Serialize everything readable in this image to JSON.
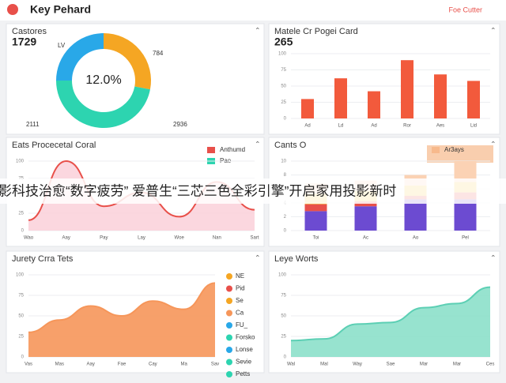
{
  "header": {
    "title": "Key Pehard",
    "link": "Foe Cutter"
  },
  "banner": "影科技治愈“数字疲劳” 爱普生“三芯三色全彩引擎”开启家用投影新时",
  "chart_data": [
    {
      "type": "donut",
      "title": "Castores",
      "kpi": "1729",
      "center_label": "12.0%",
      "values": [
        28,
        47,
        25
      ],
      "colors": [
        "#f5a623",
        "#2dd4b0",
        "#29a8e8"
      ],
      "annotations": [
        "LV",
        "784",
        "2111",
        "2936"
      ]
    },
    {
      "type": "bar",
      "title": "Matele Cr Pogei Card",
      "kpi": "265",
      "categories": [
        "Ad",
        "Ld",
        "Ad",
        "Ror",
        "Aes",
        "Lid"
      ],
      "values": [
        30,
        62,
        42,
        90,
        68,
        58
      ],
      "color": "#f25a3c",
      "ylim": [
        0,
        100
      ],
      "yticks": [
        0,
        25,
        50,
        75,
        100
      ]
    },
    {
      "type": "area",
      "title": "Eats Procecetal Coral",
      "categories": [
        "Wao",
        "Aay",
        "Pay",
        "Lay",
        "Woe",
        "Nan",
        "Sart"
      ],
      "values": [
        15,
        100,
        35,
        55,
        20,
        70,
        30
      ],
      "color": "#e8504a",
      "fill": "#fbd3dc",
      "ylim": [
        0,
        100
      ],
      "yticks": [
        0,
        25,
        50,
        75,
        100
      ],
      "legend": [
        {
          "name": "Anthumd",
          "color": "#e8504a"
        },
        {
          "name": "Pae",
          "color": "#2dd4b0"
        }
      ]
    },
    {
      "type": "stacked",
      "title": "Cants O",
      "categories": [
        "Toi",
        "Ac",
        "Ao",
        "Pel"
      ],
      "ylim": [
        0,
        10
      ],
      "yticks": [
        0,
        2,
        4,
        6,
        8,
        10
      ],
      "legend": [
        {
          "name": "Ar3ays",
          "color": "#f7b98c"
        }
      ],
      "series": [
        {
          "color": "#6c4bd1",
          "values": [
            2.8,
            3.5,
            4.5,
            4.5
          ]
        },
        {
          "color": "#e8504a",
          "values": [
            1,
            0.7,
            0.5,
            1
          ]
        },
        {
          "color": "#f7c948",
          "values": [
            1.5,
            1.5,
            1.5,
            1.5
          ]
        },
        {
          "color": "#fbd2b4",
          "values": [
            1.5,
            1.5,
            1.5,
            3
          ]
        }
      ]
    },
    {
      "type": "area",
      "title": "Jurety Crra Tets",
      "categories": [
        "Vas",
        "Mas",
        "Aay",
        "Fae",
        "Cay",
        "Ma",
        "Sav"
      ],
      "values": [
        30,
        45,
        62,
        50,
        68,
        58,
        90
      ],
      "color": "#f6965a",
      "fill": "#f6965a",
      "ylim": [
        0,
        100
      ],
      "yticks": [
        0,
        25,
        50,
        75,
        100
      ],
      "legend": [
        {
          "name": "NE",
          "color": "#f5a623"
        },
        {
          "name": "Pid",
          "color": "#e8504a"
        },
        {
          "name": "Se",
          "color": "#f5a623"
        },
        {
          "name": "Ca",
          "color": "#f6965a"
        },
        {
          "name": "FU_",
          "color": "#29a8e8"
        },
        {
          "name": "Forsko",
          "color": "#2dd4b0"
        },
        {
          "name": "Lonse",
          "color": "#29a8e8"
        },
        {
          "name": "Sevie",
          "color": "#2dd4b0"
        },
        {
          "name": "Petts",
          "color": "#2dd4b0"
        }
      ]
    },
    {
      "type": "area",
      "title": "Leye Worts",
      "categories": [
        "Wal",
        "Mal",
        "Way",
        "Sae",
        "Mar",
        "Mar",
        "Ces"
      ],
      "values": [
        20,
        22,
        40,
        42,
        60,
        65,
        85
      ],
      "color": "#5ccfb4",
      "fill": "#8ce0ca",
      "ylim": [
        0,
        100
      ],
      "yticks": [
        0,
        25,
        50,
        75,
        100
      ]
    }
  ]
}
